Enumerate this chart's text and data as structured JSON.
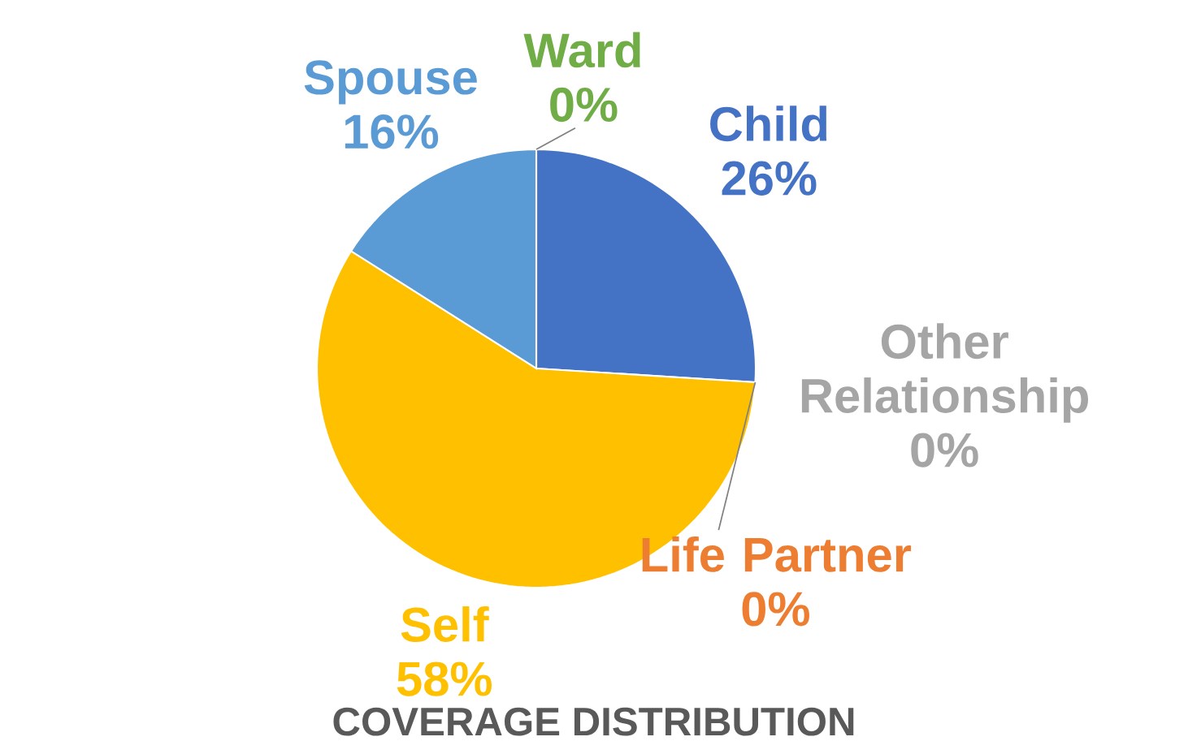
{
  "chart_data": {
    "type": "pie",
    "title": "COVERAGE DISTRIBUTION",
    "categories": [
      "Child",
      "Other Relationship",
      "Life Partner",
      "Self",
      "Spouse",
      "Ward"
    ],
    "values": [
      26,
      0,
      0,
      58,
      16,
      0
    ],
    "value_labels": [
      "26%",
      "0%",
      "0%",
      "58%",
      "16%",
      "0%"
    ],
    "colors": [
      "#4472c4",
      "#a5a5a5",
      "#ed7d31",
      "#ffc000",
      "#5b9bd5",
      "#70ad47"
    ]
  }
}
